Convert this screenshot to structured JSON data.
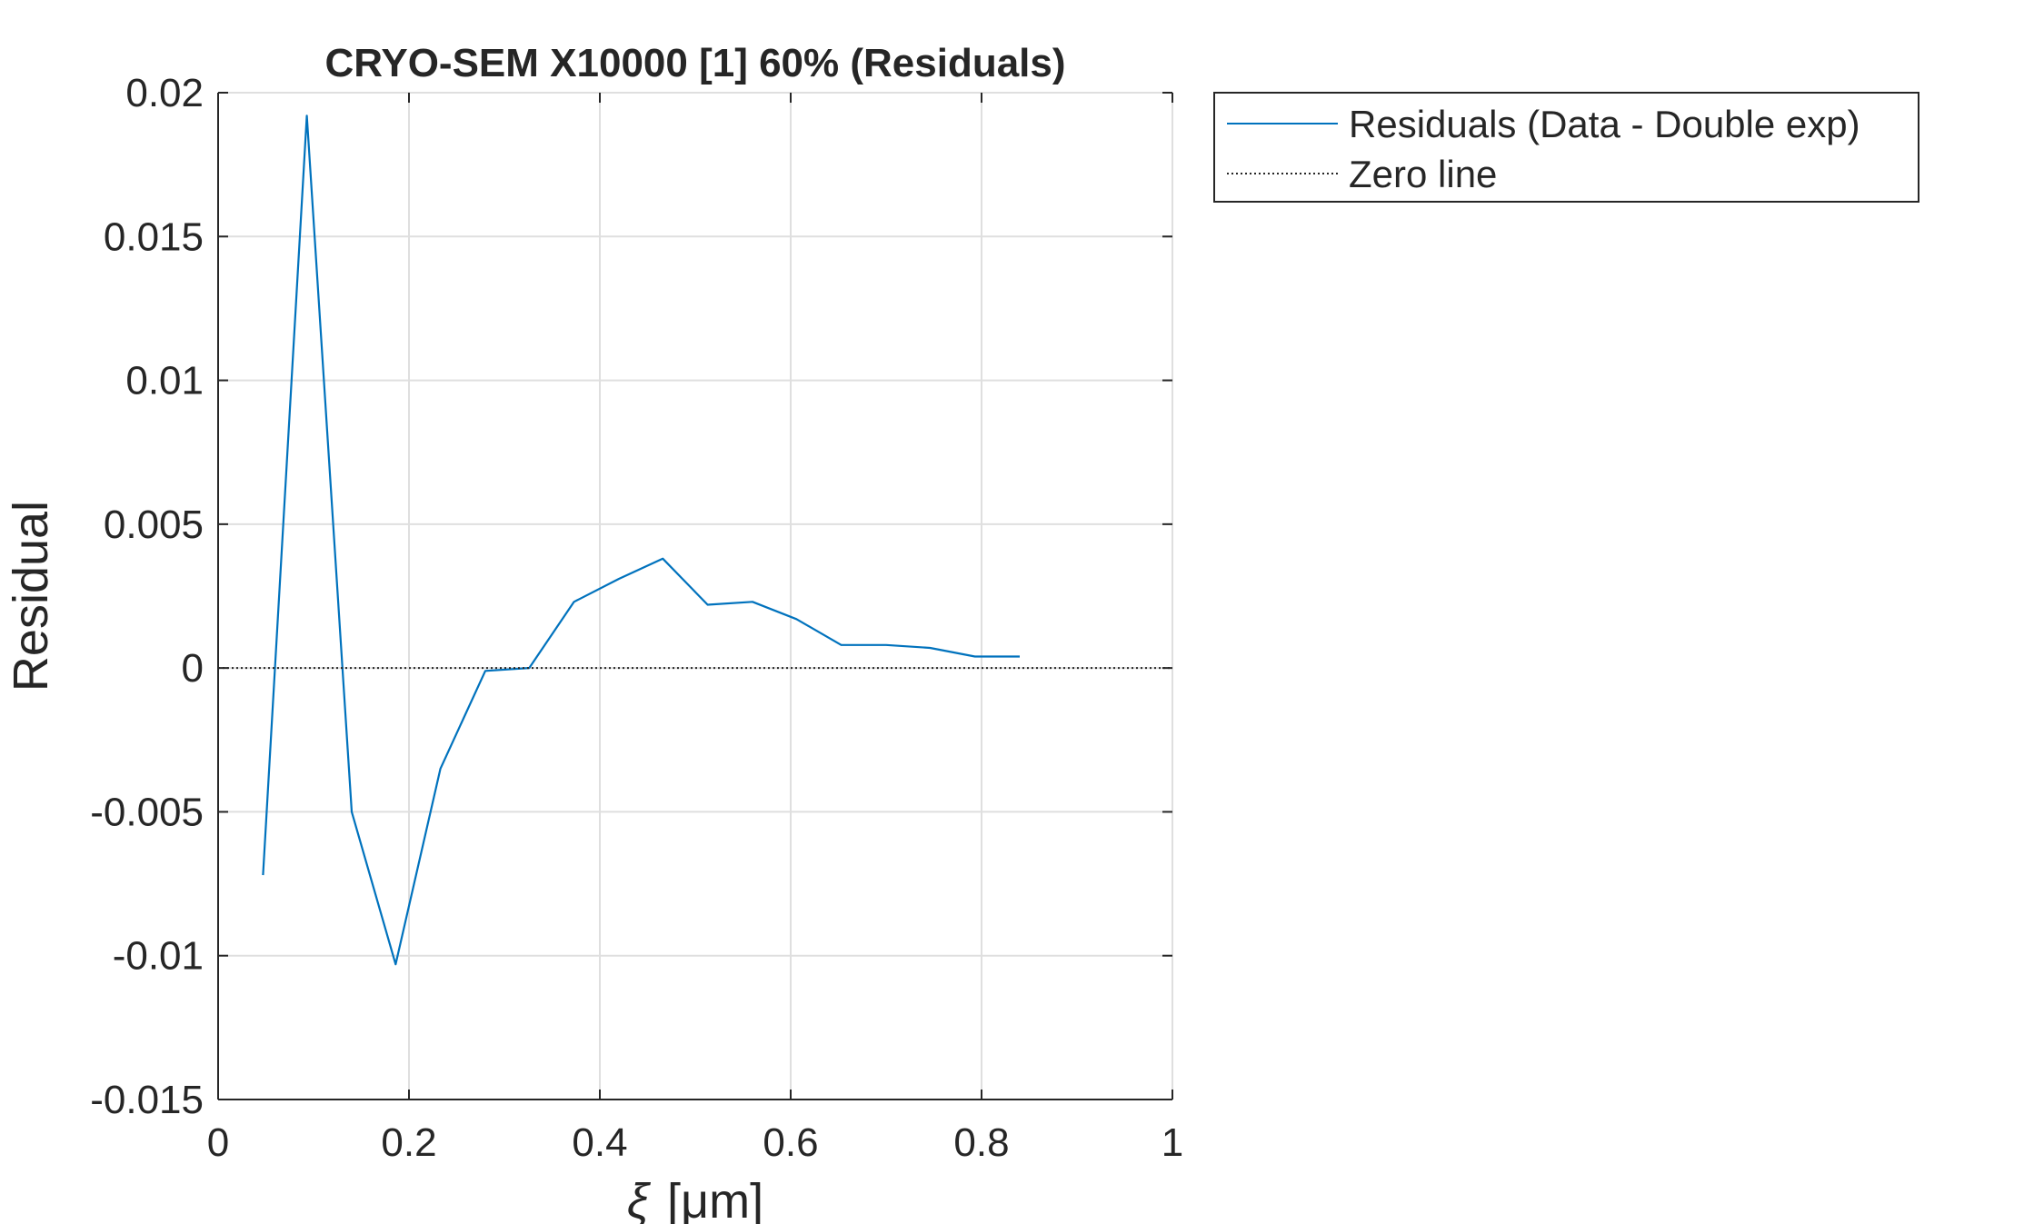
{
  "chart_data": {
    "type": "line",
    "title": "CRYO-SEM X10000 [1] 60% (Residuals)",
    "xlabel_symbol": "ξ",
    "xlabel_unit": "[μm]",
    "ylabel": "Residual",
    "xlim": [
      0,
      1
    ],
    "ylim": [
      -0.015,
      0.02
    ],
    "grid": true,
    "legend_position": "outside-right-top",
    "x_ticks": [
      0,
      0.2,
      0.4,
      0.6,
      0.8,
      1
    ],
    "x_tick_labels": [
      "0",
      "0.2",
      "0.4",
      "0.6",
      "0.8",
      "1"
    ],
    "y_ticks": [
      -0.015,
      -0.01,
      -0.005,
      0,
      0.005,
      0.01,
      0.015,
      0.02
    ],
    "y_tick_labels": [
      "-0.015",
      "-0.01",
      "-0.005",
      "0",
      "0.005",
      "0.01",
      "0.015",
      "0.02"
    ],
    "series": [
      {
        "name": "Residuals (Data - Double exp)",
        "color": "#0072BD",
        "style": "solid",
        "x": [
          0.047,
          0.093,
          0.14,
          0.186,
          0.233,
          0.28,
          0.326,
          0.373,
          0.42,
          0.466,
          0.513,
          0.56,
          0.606,
          0.653,
          0.7,
          0.746,
          0.793,
          0.84
        ],
        "y": [
          -0.0072,
          0.0192,
          -0.005,
          -0.0103,
          -0.0035,
          -0.0001,
          0.0,
          0.0023,
          0.0031,
          0.0038,
          0.0022,
          0.0023,
          0.0017,
          0.0008,
          0.0008,
          0.0007,
          0.0004,
          0.0004
        ]
      },
      {
        "name": "Zero line",
        "color": "#262626",
        "style": "dotted",
        "x": [
          0,
          1
        ],
        "y": [
          0,
          0
        ]
      }
    ]
  }
}
